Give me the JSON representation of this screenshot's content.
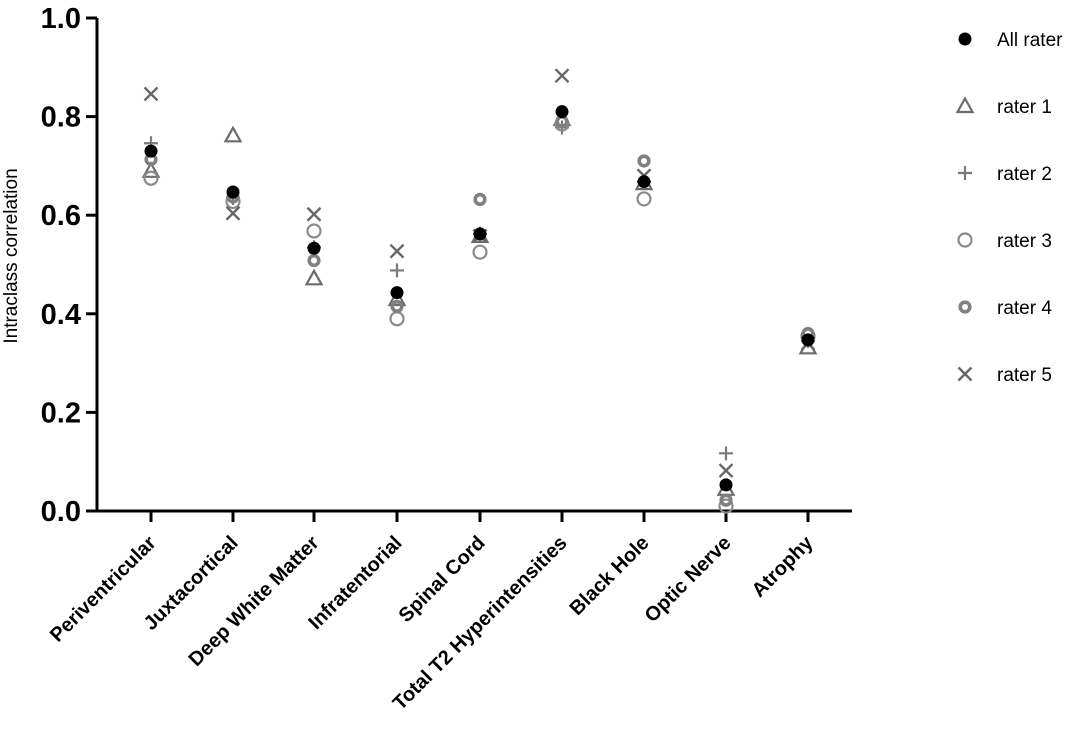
{
  "chart_data": {
    "type": "scatter",
    "title": "",
    "xlabel": "",
    "ylabel": "Intraclass correlation",
    "ylim": [
      0,
      1.0
    ],
    "yticks": [
      "0.0",
      "0.2",
      "0.4",
      "0.6",
      "0.8",
      "1.0"
    ],
    "grid": false,
    "legend_position": "right",
    "categories": [
      "Periventricular",
      "Juxtacortical",
      "Deep White Matter",
      "Infratentorial",
      "Spinal Cord",
      "Total T2 Hyperintensities",
      "Black Hole",
      "Optic Nerve",
      "Atrophy"
    ],
    "series": [
      {
        "name": "All rater",
        "marker": "filled-circle",
        "color": "#000000",
        "values": [
          0.73,
          0.647,
          0.533,
          0.443,
          0.562,
          0.81,
          0.668,
          0.053,
          0.347
        ]
      },
      {
        "name": "rater 1",
        "marker": "triangle",
        "color": "#6b6b6b",
        "values": [
          0.69,
          0.762,
          0.472,
          0.43,
          0.558,
          0.795,
          0.665,
          0.045,
          0.332
        ]
      },
      {
        "name": "rater 2",
        "marker": "plus",
        "color": "#7a7a7a",
        "values": [
          0.746,
          0.635,
          0.535,
          0.488,
          0.562,
          0.778,
          0.668,
          0.117,
          0.345
        ]
      },
      {
        "name": "rater 3",
        "marker": "open-circle",
        "color": "#8a8a8a",
        "values": [
          0.675,
          0.628,
          0.568,
          0.39,
          0.525,
          0.785,
          0.633,
          0.01,
          0.355
        ]
      },
      {
        "name": "rater 4",
        "marker": "thick-ring",
        "color": "#808080",
        "values": [
          0.713,
          0.637,
          0.508,
          0.415,
          0.632,
          0.79,
          0.71,
          0.022,
          0.36
        ]
      },
      {
        "name": "rater 5",
        "marker": "cross",
        "color": "#666666",
        "values": [
          0.846,
          0.604,
          0.602,
          0.527,
          0.558,
          0.883,
          0.68,
          0.082,
          0.34
        ]
      }
    ]
  }
}
